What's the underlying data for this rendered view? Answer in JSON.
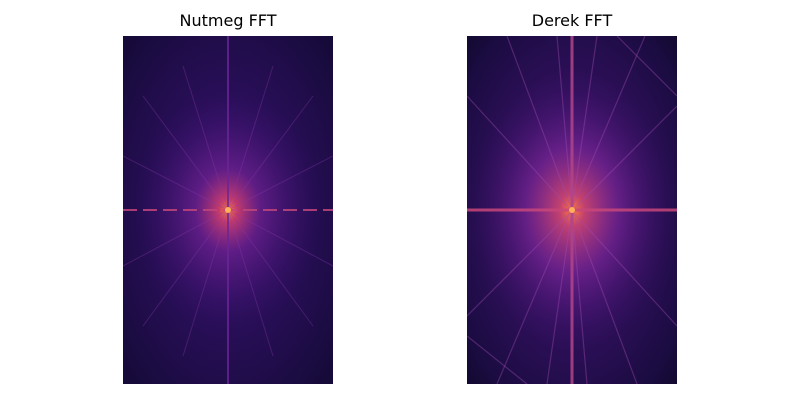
{
  "figure": {
    "panels": [
      {
        "title": "Nutmeg FFT",
        "colormap": "inferno",
        "background": "#1a0b40",
        "glow": "#6a1f9c",
        "center": "#ff6a3c"
      },
      {
        "title": "Derek FFT",
        "colormap": "inferno",
        "background": "#1a0b40",
        "glow": "#6a1f9c",
        "center": "#ff6a3c"
      }
    ]
  }
}
